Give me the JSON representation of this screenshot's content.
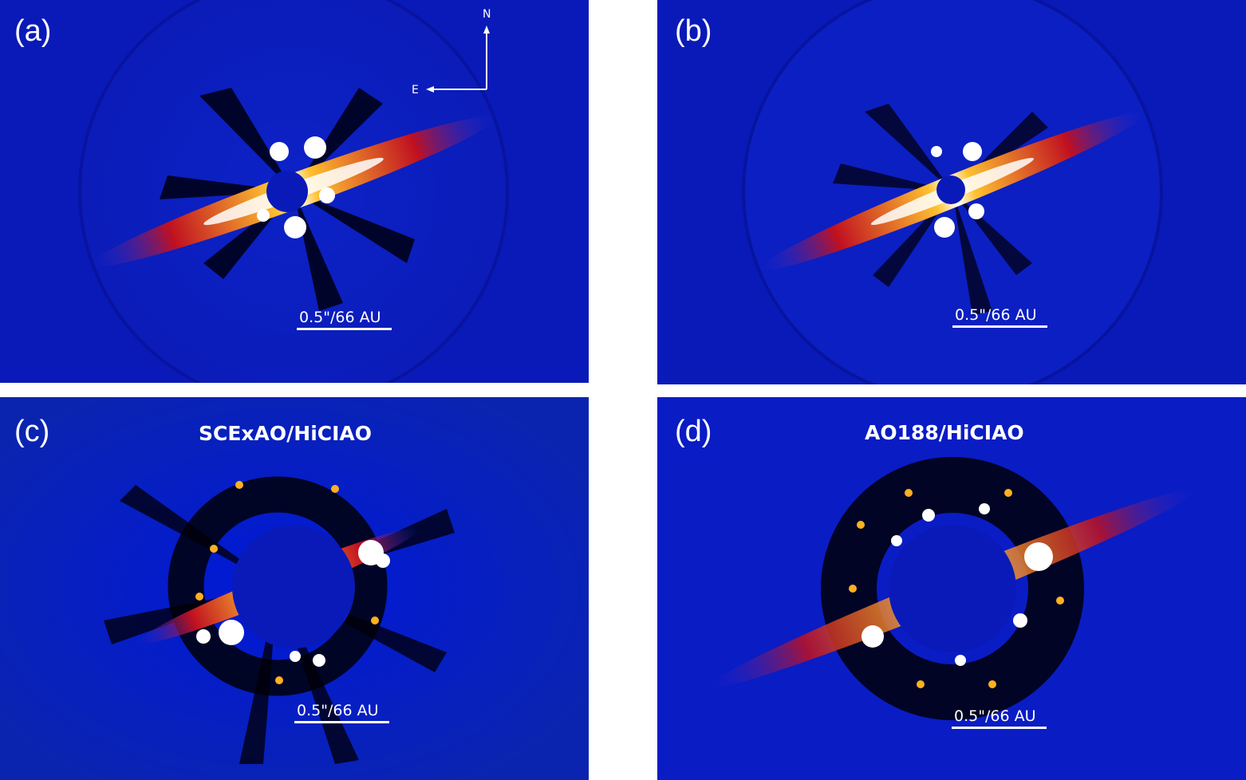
{
  "panels": {
    "a": {
      "label": "(a)",
      "scale_text": "0.5\"/66 AU"
    },
    "b": {
      "label": "(b)",
      "scale_text": "0.5\"/66 AU"
    },
    "c": {
      "label": "(c)",
      "title": "SCExAO/HiCIAO",
      "scale_text": "0.5\"/66 AU"
    },
    "d": {
      "label": "(d)",
      "title": "AO188/HiCIAO",
      "scale_text": "0.5\"/66 AU"
    }
  },
  "compass": {
    "north": "N",
    "east": "E"
  },
  "colors": {
    "background": "#0a1ab8",
    "disk_hot": "#ffffff",
    "disk_warm": "#ffd040",
    "disk_red": "#e01010",
    "dark": "#000000",
    "mask": "#0a1ab8"
  }
}
